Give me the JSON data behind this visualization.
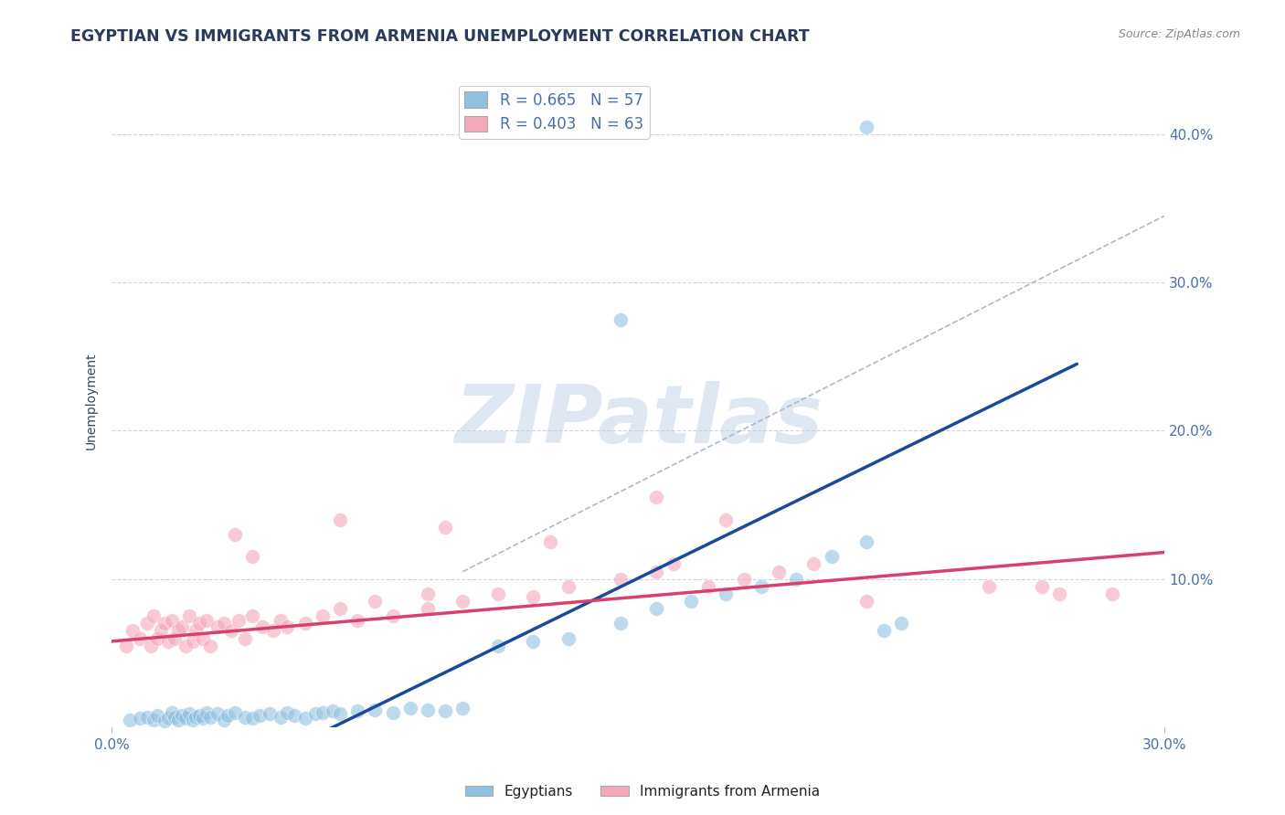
{
  "title": "EGYPTIAN VS IMMIGRANTS FROM ARMENIA UNEMPLOYMENT CORRELATION CHART",
  "source_text": "Source: ZipAtlas.com",
  "ylabel": "Unemployment",
  "watermark": "ZIPatlas",
  "xlim": [
    0.0,
    0.3
  ],
  "ylim": [
    0.0,
    0.44
  ],
  "ytick_positions": [
    0.1,
    0.2,
    0.3,
    0.4
  ],
  "ytick_labels": [
    "10.0%",
    "20.0%",
    "30.0%",
    "40.0%"
  ],
  "blue_scatter_color": "#92c0e0",
  "pink_scatter_color": "#f4a8ba",
  "blue_line_color": "#1a4a9a",
  "pink_line_color": "#d94070",
  "gray_dash_color": "#b0b8c8",
  "title_color": "#2a3a5a",
  "axis_label_color": "#334466",
  "tick_color": "#4a6fa8",
  "grid_color": "#d0d4e0",
  "blue_R": 0.665,
  "blue_N": 57,
  "pink_R": 0.403,
  "pink_N": 63,
  "blue_line_x": [
    0.05,
    0.275
  ],
  "blue_line_y": [
    -0.015,
    0.245
  ],
  "pink_line_x": [
    0.0,
    0.3
  ],
  "pink_line_y": [
    0.058,
    0.118
  ],
  "gray_line_x": [
    0.1,
    0.3
  ],
  "gray_line_y": [
    0.105,
    0.345
  ],
  "blue_points_x": [
    0.005,
    0.008,
    0.01,
    0.012,
    0.013,
    0.015,
    0.016,
    0.017,
    0.018,
    0.019,
    0.02,
    0.021,
    0.022,
    0.023,
    0.024,
    0.025,
    0.026,
    0.027,
    0.028,
    0.03,
    0.032,
    0.033,
    0.035,
    0.038,
    0.04,
    0.042,
    0.045,
    0.048,
    0.05,
    0.052,
    0.055,
    0.058,
    0.06,
    0.063,
    0.065,
    0.07,
    0.075,
    0.08,
    0.085,
    0.09,
    0.095,
    0.1,
    0.11,
    0.12,
    0.13,
    0.145,
    0.155,
    0.165,
    0.175,
    0.185,
    0.195,
    0.205,
    0.215,
    0.22,
    0.225,
    0.215,
    0.145
  ],
  "blue_points_y": [
    0.005,
    0.006,
    0.007,
    0.005,
    0.008,
    0.004,
    0.006,
    0.01,
    0.007,
    0.005,
    0.008,
    0.006,
    0.009,
    0.005,
    0.007,
    0.008,
    0.006,
    0.01,
    0.007,
    0.009,
    0.005,
    0.008,
    0.01,
    0.007,
    0.006,
    0.008,
    0.009,
    0.007,
    0.01,
    0.008,
    0.006,
    0.009,
    0.01,
    0.011,
    0.009,
    0.011,
    0.012,
    0.01,
    0.013,
    0.012,
    0.011,
    0.013,
    0.055,
    0.058,
    0.06,
    0.07,
    0.08,
    0.085,
    0.09,
    0.095,
    0.1,
    0.115,
    0.125,
    0.065,
    0.07,
    0.405,
    0.275
  ],
  "pink_points_x": [
    0.004,
    0.006,
    0.008,
    0.01,
    0.011,
    0.012,
    0.013,
    0.014,
    0.015,
    0.016,
    0.017,
    0.018,
    0.019,
    0.02,
    0.021,
    0.022,
    0.023,
    0.024,
    0.025,
    0.026,
    0.027,
    0.028,
    0.03,
    0.032,
    0.034,
    0.036,
    0.038,
    0.04,
    0.043,
    0.046,
    0.048,
    0.05,
    0.055,
    0.06,
    0.065,
    0.07,
    0.075,
    0.08,
    0.09,
    0.1,
    0.11,
    0.12,
    0.13,
    0.145,
    0.155,
    0.16,
    0.17,
    0.18,
    0.19,
    0.2,
    0.155,
    0.25,
    0.27,
    0.265,
    0.285,
    0.175,
    0.065,
    0.095,
    0.125,
    0.215,
    0.04,
    0.035,
    0.09
  ],
  "pink_points_y": [
    0.055,
    0.065,
    0.06,
    0.07,
    0.055,
    0.075,
    0.06,
    0.065,
    0.07,
    0.058,
    0.072,
    0.06,
    0.065,
    0.068,
    0.055,
    0.075,
    0.058,
    0.065,
    0.07,
    0.06,
    0.072,
    0.055,
    0.068,
    0.07,
    0.065,
    0.072,
    0.06,
    0.075,
    0.068,
    0.065,
    0.072,
    0.068,
    0.07,
    0.075,
    0.08,
    0.072,
    0.085,
    0.075,
    0.08,
    0.085,
    0.09,
    0.088,
    0.095,
    0.1,
    0.105,
    0.11,
    0.095,
    0.1,
    0.105,
    0.11,
    0.155,
    0.095,
    0.09,
    0.095,
    0.09,
    0.14,
    0.14,
    0.135,
    0.125,
    0.085,
    0.115,
    0.13,
    0.09
  ]
}
